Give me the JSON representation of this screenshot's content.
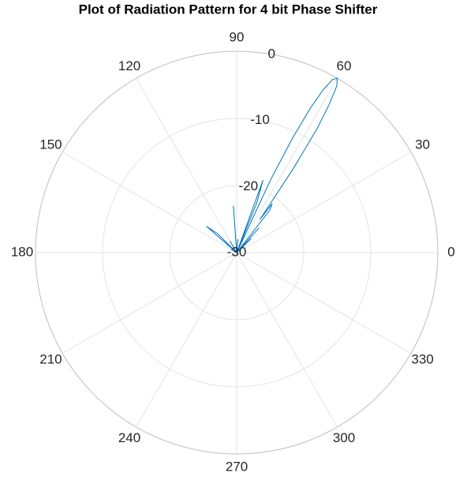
{
  "chart_data": {
    "type": "polar",
    "title": "Plot of Radiation Pattern for 4 bit Phase Shifter",
    "theta": [
      0,
      30,
      40,
      44,
      46,
      48,
      50,
      52,
      54,
      55,
      56,
      57,
      58,
      59,
      60,
      61,
      62,
      63,
      64,
      65,
      66,
      68,
      70,
      72,
      80,
      85,
      90,
      94,
      96,
      110,
      120,
      125,
      135,
      139,
      142,
      150,
      160,
      180,
      360
    ],
    "series": [
      {
        "color": "#0072bd",
        "values": [
          -30,
          -30,
          -30,
          -27,
          -30,
          -25,
          -30,
          -22,
          -21,
          -24,
          -15,
          -8,
          -4,
          -1,
          0,
          -0.5,
          -2.5,
          -6,
          -11,
          -18,
          -30,
          -22,
          -18.5,
          -30,
          -30,
          -28,
          -30,
          -23,
          -30,
          -30,
          -28,
          -30,
          -26,
          -24,
          -30,
          -29,
          -30,
          -30,
          -30
        ]
      }
    ],
    "rlim": [
      -30,
      0
    ],
    "rticks": [
      -30,
      -20,
      -10,
      0
    ],
    "thetaticks": [
      0,
      30,
      60,
      90,
      120,
      150,
      180,
      210,
      240,
      270,
      300,
      330
    ],
    "grid": true
  }
}
